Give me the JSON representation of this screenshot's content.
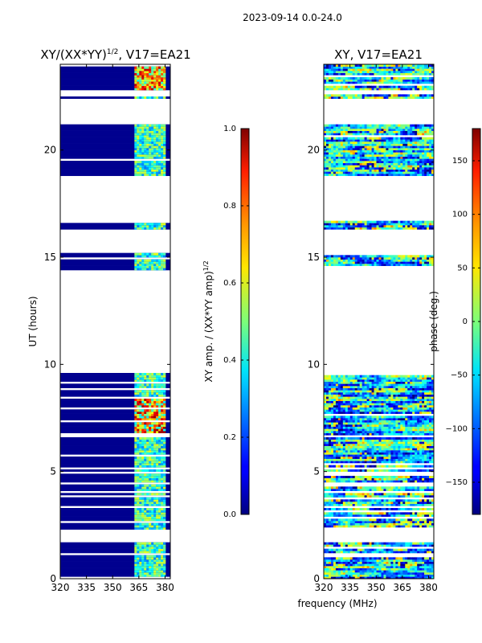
{
  "figure_title": "2023-09-14 0.0-24.0",
  "shared_xlabel": "frequency (MHz)",
  "chart_data": [
    {
      "type": "heatmap",
      "title_main": "XY/(XX*YY)",
      "title_sup": "1/2",
      "title_rest": ", V17=EA21",
      "ylabel": "UT (hours)",
      "xlim": [
        320,
        383
      ],
      "ylim": [
        0,
        24
      ],
      "xticks": [
        320,
        335,
        350,
        365,
        380
      ],
      "yticks": [
        0,
        5,
        10,
        15,
        20
      ],
      "colormap": "jet",
      "colorbar": {
        "label_main": "XY amp. / (XX*YY amp)",
        "label_sup": "1/2",
        "range": [
          0.0,
          1.0
        ],
        "ticks": [
          0.0,
          0.2,
          0.4,
          0.6,
          0.8,
          1.0
        ],
        "tick_labels": [
          "0.0",
          "0.2",
          "0.4",
          "0.6",
          "0.8",
          "1.0"
        ]
      },
      "data_gaps_hours": [
        [
          9.6,
          14.4
        ],
        [
          15.15,
          16.3
        ],
        [
          16.7,
          18.8
        ],
        [
          21.2,
          22.4
        ],
        [
          22.6,
          22.8
        ],
        [
          18.2,
          18.4
        ],
        [
          17.5,
          17.6
        ],
        [
          1.7,
          2.3
        ],
        [
          3.3,
          3.4
        ],
        [
          4.0,
          4.1
        ],
        [
          4.4,
          4.5
        ],
        [
          5.1,
          5.2
        ],
        [
          1.1,
          1.2
        ]
      ],
      "bright_channel_band_mhz": [
        363,
        380
      ]
    },
    {
      "type": "heatmap",
      "title_main": "XY, V17=EA21",
      "title_sup": "",
      "title_rest": "",
      "ylabel": "",
      "xlim": [
        320,
        383
      ],
      "ylim": [
        0,
        24
      ],
      "xticks": [
        320,
        335,
        350,
        365,
        380
      ],
      "yticks": [
        0,
        5,
        10,
        15,
        20
      ],
      "colormap": "jet",
      "colorbar": {
        "label_main": "phase (deg.)",
        "label_sup": "",
        "range": [
          -180,
          180
        ],
        "ticks": [
          -150,
          -100,
          -50,
          0,
          50,
          100,
          150
        ],
        "tick_labels": [
          "−150",
          "−100",
          "−50",
          "0",
          "50",
          "100",
          "150"
        ]
      }
    }
  ]
}
